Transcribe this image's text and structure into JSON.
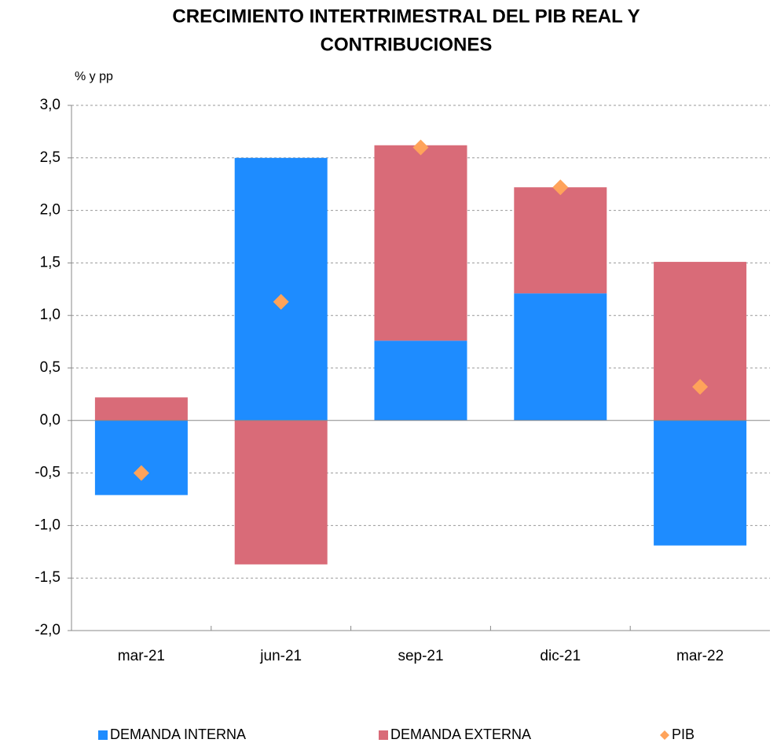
{
  "chart_data": {
    "type": "stacked_bar",
    "title": [
      "CRECIMIENTO INTERTRIMESTRAL DEL PIB REAL Y",
      "CONTRIBUCIONES"
    ],
    "y_axis_label": "% y pp",
    "categories": [
      "mar-21",
      "jun-21",
      "sep-21",
      "dic-21",
      "mar-22"
    ],
    "series": [
      {
        "name": "DEMANDA INTERNA",
        "color": "#1e8cff",
        "kind": "bar",
        "values": [
          -0.71,
          2.5,
          0.76,
          1.21,
          -1.19
        ]
      },
      {
        "name": "DEMANDA EXTERNA",
        "color": "#d96b78",
        "kind": "bar",
        "values": [
          0.22,
          -1.37,
          1.86,
          1.01,
          1.51
        ]
      },
      {
        "name": "PIB",
        "color": "#ffa35a",
        "kind": "marker",
        "values": [
          -0.5,
          1.13,
          2.6,
          2.22,
          0.32
        ]
      }
    ],
    "ylim": [
      -2,
      3
    ],
    "yticks": [
      {
        "value": 3,
        "label": "3,0"
      },
      {
        "value": 2.5,
        "label": "2,5"
      },
      {
        "value": 2,
        "label": "2,0"
      },
      {
        "value": 1.5,
        "label": "1,5"
      },
      {
        "value": 1,
        "label": "1,0"
      },
      {
        "value": 0.5,
        "label": "0,5"
      },
      {
        "value": 0,
        "label": "0,0"
      },
      {
        "value": -0.5,
        "label": "-0,5"
      },
      {
        "value": -1,
        "label": "-1,0"
      },
      {
        "value": -1.5,
        "label": "-1,5"
      },
      {
        "value": -2,
        "label": "-2,0"
      }
    ],
    "grid": true,
    "legend": "bottom"
  }
}
